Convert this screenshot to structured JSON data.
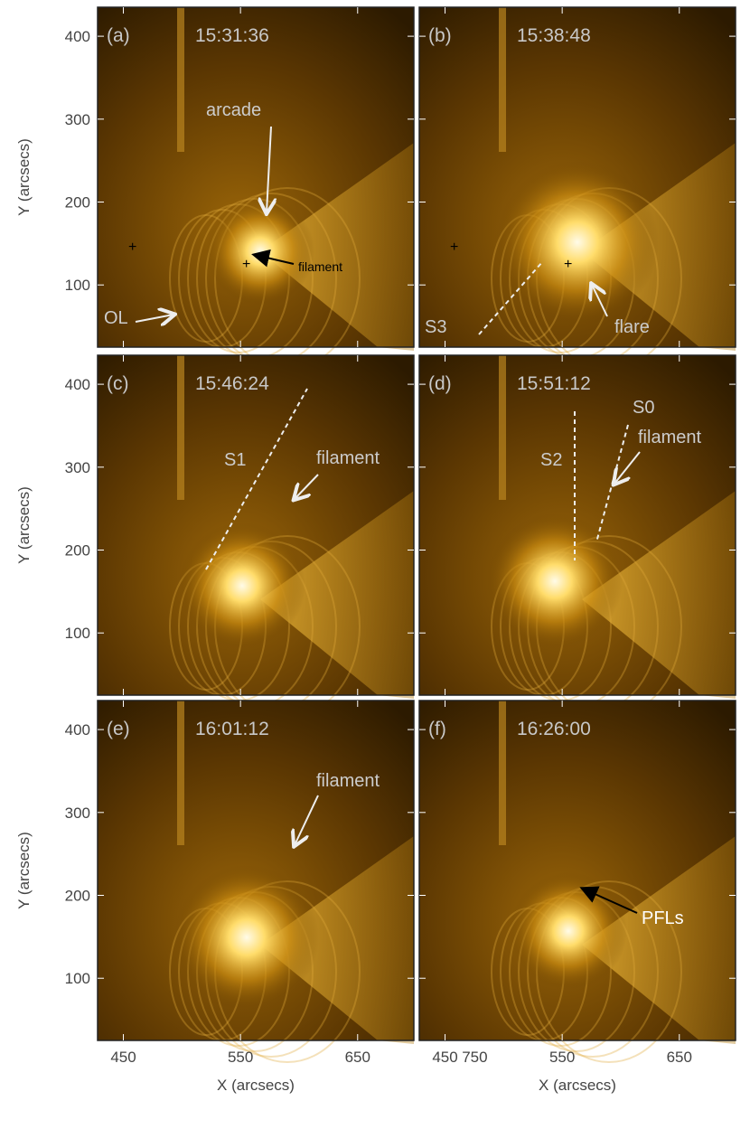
{
  "x_axis": {
    "label": "X (arcsecs)",
    "lim": [
      428,
      698
    ],
    "ticks": [
      450,
      550,
      650,
      750
    ]
  },
  "y_axis": {
    "label": "Y (arcsecs)",
    "lim": [
      25,
      435
    ],
    "ticks": [
      100,
      200,
      300,
      400
    ]
  },
  "panels": [
    {
      "label": "(a)",
      "time": "15:31:36",
      "annotations": [
        "arcade",
        "filament",
        "OL"
      ]
    },
    {
      "label": "(b)",
      "time": "15:38:48",
      "annotations": [
        "S3",
        "flare"
      ]
    },
    {
      "label": "(c)",
      "time": "15:46:24",
      "annotations": [
        "S1",
        "filament"
      ]
    },
    {
      "label": "(d)",
      "time": "15:51:12",
      "annotations": [
        "S2",
        "S0",
        "filament"
      ]
    },
    {
      "label": "(e)",
      "time": "16:01:12",
      "annotations": [
        "filament"
      ]
    },
    {
      "label": "(f)",
      "time": "16:26:00",
      "annotations": [
        "PFLs"
      ]
    }
  ]
}
